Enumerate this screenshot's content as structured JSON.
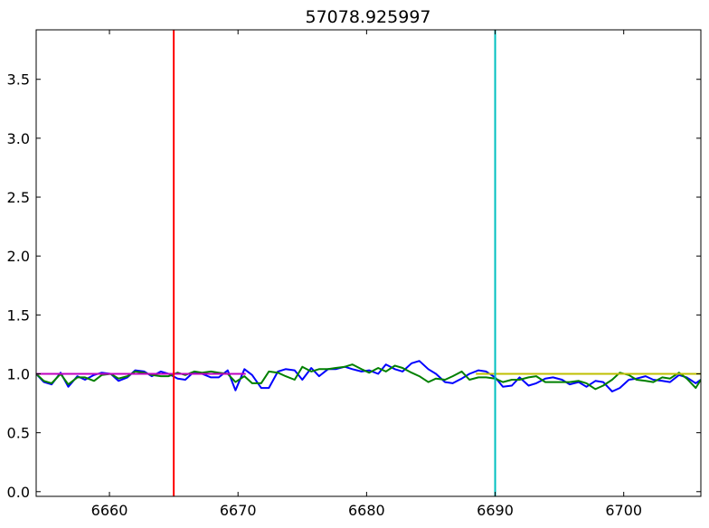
{
  "chart_data": {
    "type": "line",
    "title": "57078.925997",
    "xlabel": "",
    "ylabel": "",
    "xlim": [
      6654.3,
      6706.0
    ],
    "ylim": [
      -0.04,
      3.92
    ],
    "grid": false,
    "x_ticks": [
      6660,
      6670,
      6680,
      6690,
      6700
    ],
    "x_tick_labels": [
      "6660",
      "6670",
      "6680",
      "6690",
      "6700"
    ],
    "y_ticks": [
      0.0,
      0.5,
      1.0,
      1.5,
      2.0,
      2.5,
      3.0,
      3.5
    ],
    "y_tick_labels": [
      "0.0",
      "0.5",
      "1.0",
      "1.5",
      "2.0",
      "2.5",
      "3.0",
      "3.5"
    ],
    "colors": {
      "blue": "#0000ff",
      "green": "#008000",
      "magenta": "#bf00bf",
      "yellow": "#bfbf00",
      "red": "#ff0000",
      "cyan": "#00bfbf"
    },
    "series": [
      {
        "color": "blue",
        "x": [
          6654.3,
          6654.9,
          6655.5,
          6656.2,
          6656.8,
          6657.5,
          6658.1,
          6658.8,
          6659.4,
          6660.1,
          6660.7,
          6661.4,
          6662.0,
          6662.7,
          6663.3,
          6664.0,
          6664.6,
          6665.3,
          6665.9,
          6666.6,
          6667.2,
          6667.9,
          6668.5,
          6669.2,
          6669.8,
          6670.5,
          6671.1,
          6671.8,
          6672.4,
          6673.1,
          6673.7,
          6674.4,
          6675.0,
          6675.7,
          6676.3,
          6677.0,
          6677.6,
          6678.3,
          6678.9,
          6679.6,
          6680.2,
          6680.9,
          6681.5,
          6682.2,
          6682.8,
          6683.5,
          6684.1,
          6684.8,
          6685.4,
          6686.1,
          6686.7,
          6687.4,
          6688.0,
          6688.7,
          6689.3,
          6690.0,
          6690.6,
          6691.3,
          6691.9,
          6692.6,
          6693.2,
          6693.9,
          6694.5,
          6695.2,
          6695.8,
          6696.5,
          6697.1,
          6697.8,
          6698.4,
          6699.1,
          6699.7,
          6700.4,
          6701.0,
          6701.7,
          6702.3,
          6703.0,
          6703.6,
          6704.3,
          6704.9,
          6705.6,
          6706.0
        ],
        "y": [
          1.0,
          0.93,
          0.91,
          1.01,
          0.89,
          0.98,
          0.95,
          0.99,
          1.01,
          1.0,
          0.94,
          0.97,
          1.03,
          1.02,
          0.98,
          1.02,
          1.0,
          0.96,
          0.95,
          1.02,
          1.0,
          0.97,
          0.97,
          1.03,
          0.86,
          1.04,
          0.99,
          0.88,
          0.88,
          1.02,
          1.04,
          1.03,
          0.95,
          1.05,
          0.98,
          1.04,
          1.04,
          1.06,
          1.04,
          1.02,
          1.03,
          1.0,
          1.08,
          1.04,
          1.02,
          1.09,
          1.11,
          1.04,
          1.0,
          0.93,
          0.92,
          0.96,
          1.0,
          1.03,
          1.02,
          0.97,
          0.89,
          0.9,
          0.97,
          0.9,
          0.92,
          0.96,
          0.97,
          0.95,
          0.91,
          0.93,
          0.89,
          0.94,
          0.93,
          0.85,
          0.88,
          0.95,
          0.96,
          0.98,
          0.95,
          0.94,
          0.93,
          0.99,
          0.97,
          0.92,
          0.95
        ]
      },
      {
        "color": "green",
        "x": [
          6654.3,
          6654.9,
          6655.5,
          6656.2,
          6656.8,
          6657.5,
          6658.1,
          6658.8,
          6659.4,
          6660.1,
          6660.7,
          6661.4,
          6662.0,
          6662.7,
          6663.3,
          6664.0,
          6664.6,
          6665.3,
          6665.9,
          6666.6,
          6667.2,
          6667.9,
          6668.5,
          6669.2,
          6669.8,
          6670.5,
          6671.1,
          6671.8,
          6672.4,
          6673.1,
          6673.7,
          6674.4,
          6675.0,
          6675.7,
          6676.3,
          6677.0,
          6677.6,
          6678.3,
          6678.9,
          6679.6,
          6680.2,
          6680.9,
          6681.5,
          6682.2,
          6682.8,
          6683.5,
          6684.1,
          6684.8,
          6685.4,
          6686.1,
          6686.7,
          6687.4,
          6688.0,
          6688.7,
          6689.3,
          6690.0,
          6690.6,
          6691.3,
          6691.9,
          6692.6,
          6693.2,
          6693.9,
          6694.5,
          6695.2,
          6695.8,
          6696.5,
          6697.1,
          6697.8,
          6698.4,
          6699.1,
          6699.7,
          6700.4,
          6701.0,
          6701.7,
          6702.3,
          6703.0,
          6703.6,
          6704.3,
          6704.9,
          6705.6,
          6706.0
        ],
        "y": [
          1.0,
          0.94,
          0.92,
          1.0,
          0.91,
          0.97,
          0.97,
          0.94,
          0.99,
          1.0,
          0.96,
          0.98,
          1.02,
          1.01,
          0.99,
          0.98,
          0.98,
          1.01,
          0.99,
          1.02,
          1.01,
          1.02,
          1.01,
          1.0,
          0.93,
          0.98,
          0.92,
          0.92,
          1.02,
          1.01,
          0.98,
          0.95,
          1.06,
          1.02,
          1.04,
          1.04,
          1.05,
          1.06,
          1.08,
          1.04,
          1.01,
          1.05,
          1.02,
          1.07,
          1.05,
          1.01,
          0.98,
          0.93,
          0.96,
          0.95,
          0.98,
          1.02,
          0.95,
          0.97,
          0.97,
          0.96,
          0.93,
          0.95,
          0.95,
          0.97,
          0.98,
          0.93,
          0.93,
          0.93,
          0.93,
          0.94,
          0.92,
          0.87,
          0.9,
          0.95,
          1.01,
          0.99,
          0.95,
          0.94,
          0.93,
          0.97,
          0.96,
          1.01,
          0.96,
          0.88,
          0.95
        ]
      },
      {
        "color": "magenta",
        "x": [
          6654.3,
          6670.6
        ],
        "y": [
          1.0,
          1.0
        ]
      },
      {
        "color": "yellow",
        "x": [
          6688.5,
          6706.0
        ],
        "y": [
          1.0,
          1.0
        ]
      }
    ],
    "vlines": [
      {
        "x": 6665.0,
        "color": "red"
      },
      {
        "x": 6690.0,
        "color": "cyan"
      }
    ]
  }
}
